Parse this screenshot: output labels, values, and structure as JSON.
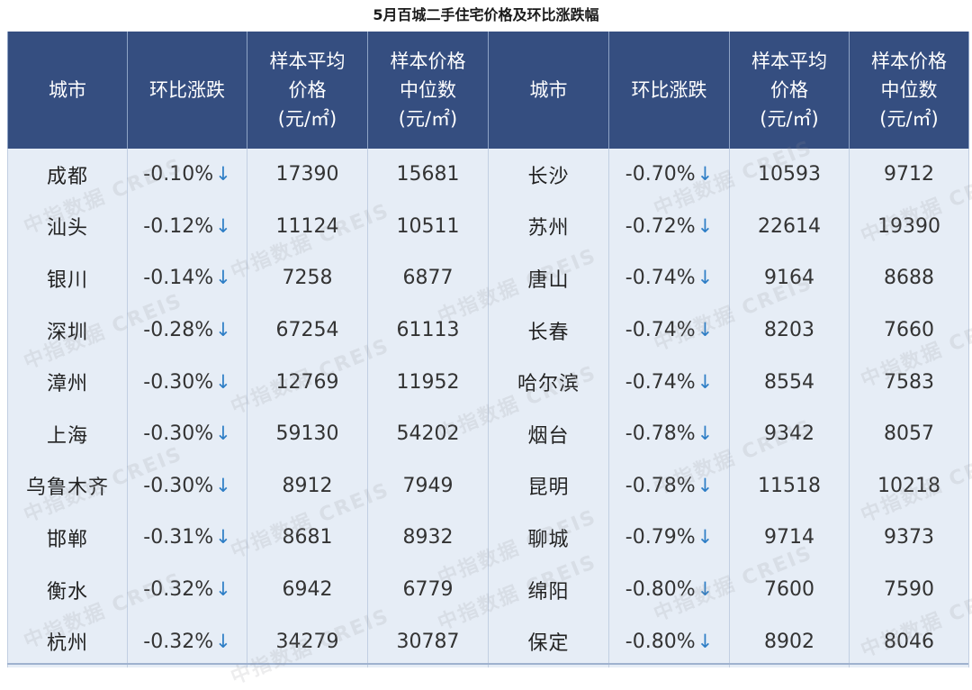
{
  "title": "5月百城二手住宅价格及环比涨跌幅",
  "headers": [
    [
      "城市"
    ],
    [
      "环比涨跌"
    ],
    [
      "样本平均",
      "价格",
      "(元/㎡)"
    ],
    [
      "样本价格",
      "中位数",
      "(元/㎡)"
    ],
    [
      "城市"
    ],
    [
      "环比涨跌"
    ],
    [
      "样本平均",
      "价格",
      "(元/㎡)"
    ],
    [
      "样本价格",
      "中位数",
      "(元/㎡)"
    ]
  ],
  "rows": [
    {
      "left": {
        "city": "成都",
        "change": "-0.10%",
        "avg": "17390",
        "median": "15681"
      },
      "right": {
        "city": "长沙",
        "change": "-0.70%",
        "avg": "10593",
        "median": "9712"
      }
    },
    {
      "left": {
        "city": "汕头",
        "change": "-0.12%",
        "avg": "11124",
        "median": "10511"
      },
      "right": {
        "city": "苏州",
        "change": "-0.72%",
        "avg": "22614",
        "median": "19390"
      }
    },
    {
      "left": {
        "city": "银川",
        "change": "-0.14%",
        "avg": "7258",
        "median": "6877"
      },
      "right": {
        "city": "唐山",
        "change": "-0.74%",
        "avg": "9164",
        "median": "8688"
      }
    },
    {
      "left": {
        "city": "深圳",
        "change": "-0.28%",
        "avg": "67254",
        "median": "61113"
      },
      "right": {
        "city": "长春",
        "change": "-0.74%",
        "avg": "8203",
        "median": "7660"
      }
    },
    {
      "left": {
        "city": "漳州",
        "change": "-0.30%",
        "avg": "12769",
        "median": "11952"
      },
      "right": {
        "city": "哈尔滨",
        "change": "-0.74%",
        "avg": "8554",
        "median": "7583"
      }
    },
    {
      "left": {
        "city": "上海",
        "change": "-0.30%",
        "avg": "59130",
        "median": "54202"
      },
      "right": {
        "city": "烟台",
        "change": "-0.78%",
        "avg": "9342",
        "median": "8057"
      }
    },
    {
      "left": {
        "city": "乌鲁木齐",
        "change": "-0.30%",
        "avg": "8912",
        "median": "7949"
      },
      "right": {
        "city": "昆明",
        "change": "-0.78%",
        "avg": "11518",
        "median": "10218"
      }
    },
    {
      "left": {
        "city": "邯郸",
        "change": "-0.31%",
        "avg": "8681",
        "median": "8932"
      },
      "right": {
        "city": "聊城",
        "change": "-0.79%",
        "avg": "9714",
        "median": "9373"
      }
    },
    {
      "left": {
        "city": "衡水",
        "change": "-0.32%",
        "avg": "6942",
        "median": "6779"
      },
      "right": {
        "city": "绵阳",
        "change": "-0.80%",
        "avg": "7600",
        "median": "7590"
      }
    },
    {
      "left": {
        "city": "杭州",
        "change": "-0.32%",
        "avg": "34279",
        "median": "30787"
      },
      "right": {
        "city": "保定",
        "change": "-0.80%",
        "avg": "8902",
        "median": "8046"
      }
    }
  ],
  "change_icon": "arrow-down-icon",
  "change_icon_glyph": "↓",
  "watermark_text": "中指数据 CREIS",
  "colors": {
    "header_bg": "#354e80",
    "row_bg": "#e6edf6",
    "arrow": "#2e7ec6"
  }
}
